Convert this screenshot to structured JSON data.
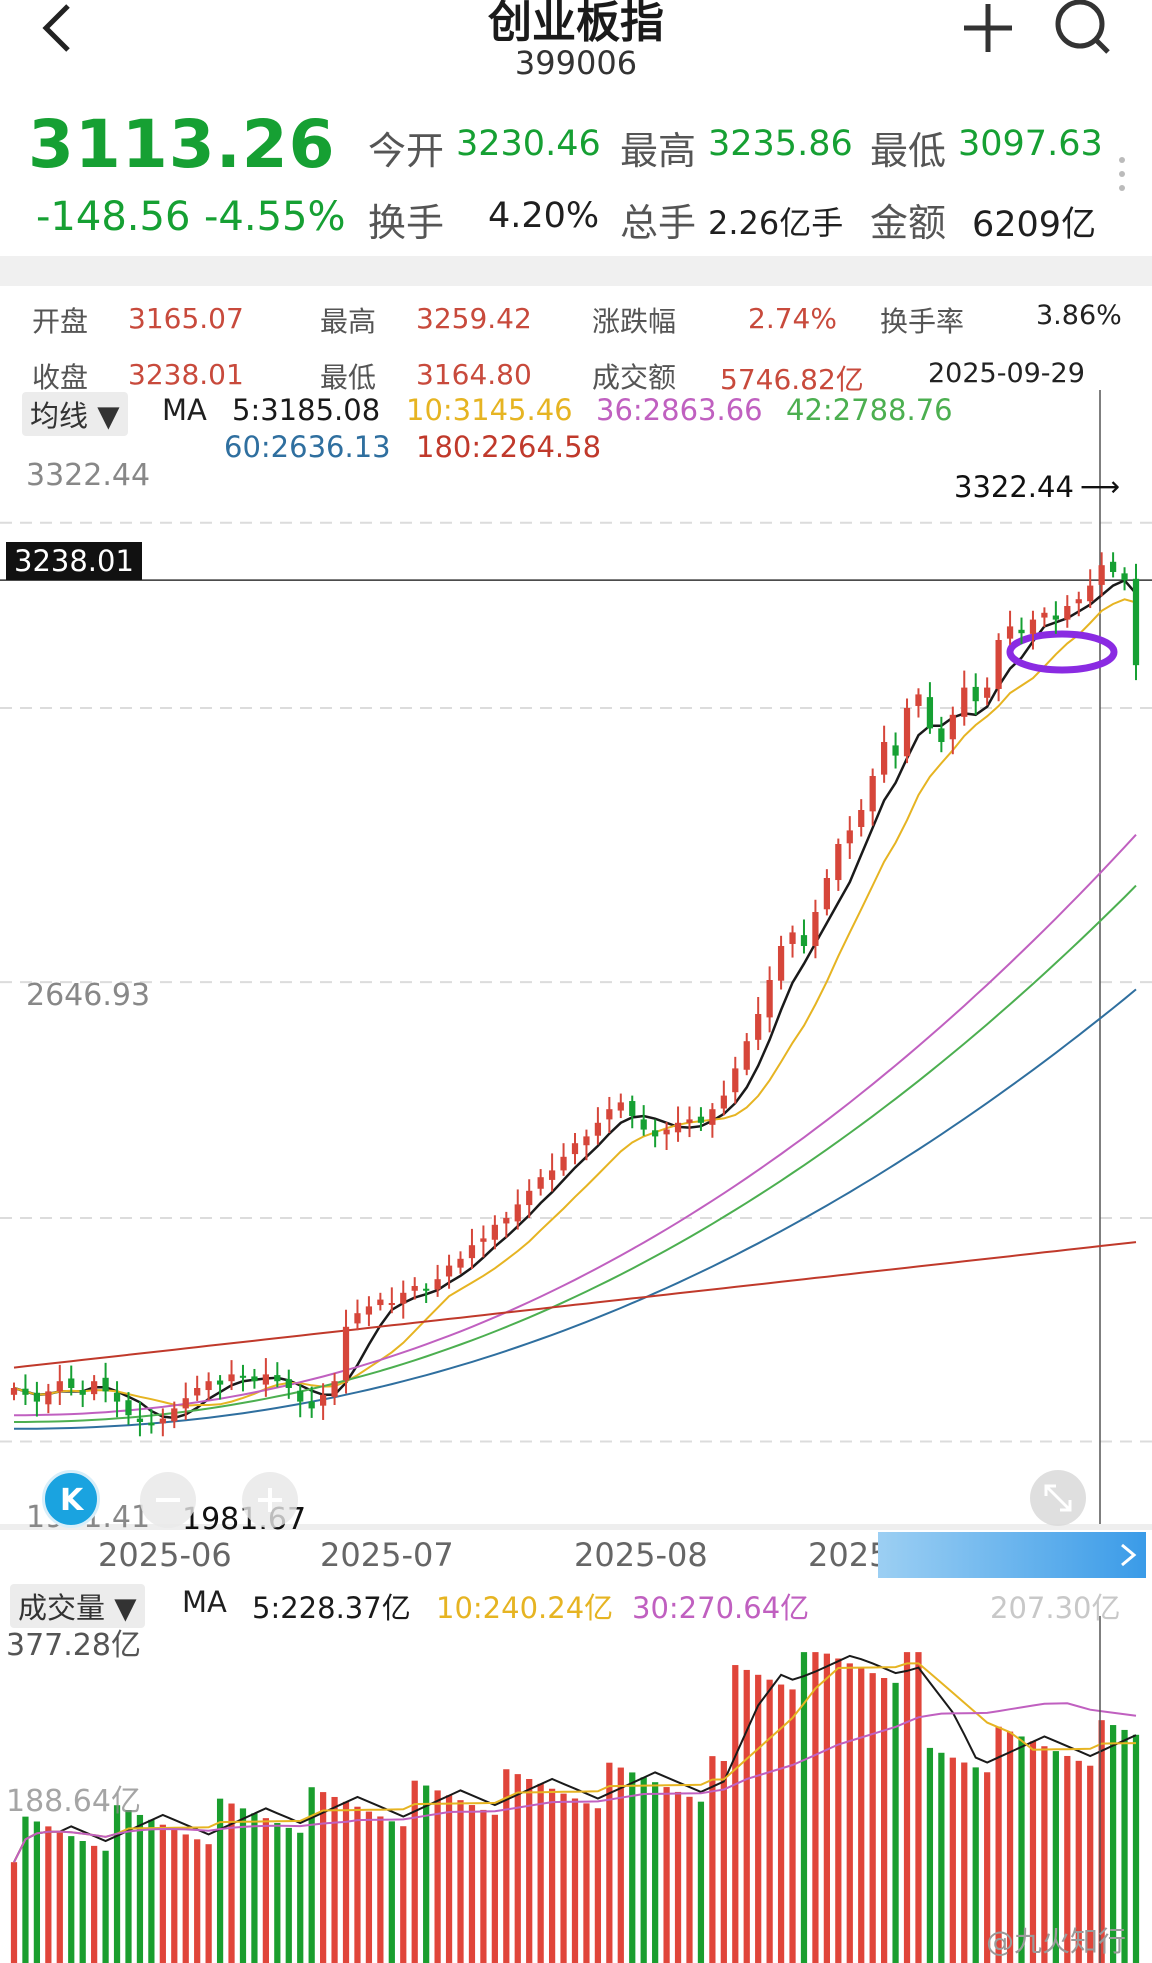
{
  "header": {
    "back_icon": "chevron-left-icon",
    "title": "创业板指",
    "code": "399006",
    "add_icon": "plus-icon",
    "search_icon": "search-icon"
  },
  "quote": {
    "price": "3113.26",
    "change": "-148.56",
    "change_pct": "-4.55%",
    "open_label": "今开",
    "open": "3230.46",
    "high_label": "最高",
    "high": "3235.86",
    "low_label": "最低",
    "low": "3097.63",
    "turnover_label": "换手",
    "turnover": "4.20%",
    "volume_label": "总手",
    "volume": "2.26亿手",
    "amount_label": "金额",
    "amount": "6209亿"
  },
  "ohlc": {
    "open_label": "开盘",
    "open": "3165.07",
    "high_label": "最高",
    "high": "3259.42",
    "change_label": "涨跌幅",
    "change": "2.74%",
    "turnover_label": "换手率",
    "turnover": "3.86%",
    "close_label": "收盘",
    "close": "3238.01",
    "low_label": "最低",
    "low": "3164.80",
    "amount_label": "成交额",
    "amount": "5746.82亿",
    "date": "2025-09-29"
  },
  "ma": {
    "selector": "均线 ▼",
    "label": "MA",
    "items": [
      {
        "text": "5:3185.08",
        "color": "#1a1a1a"
      },
      {
        "text": "10:3145.46",
        "color": "#e6b422"
      },
      {
        "text": "36:2863.66",
        "color": "#c060c0"
      },
      {
        "text": "42:2788.76",
        "color": "#4caf50"
      },
      {
        "text": "60:2636.13",
        "color": "#2f6f9f"
      },
      {
        "text": "180:2264.58",
        "color": "#c0392b"
      }
    ]
  },
  "price_chart": {
    "top_label": "3322.44",
    "mid_label": "2646.93",
    "bottom_label": "1971.41",
    "crosshair_value": "3238.01",
    "max_marker": "3322.44",
    "min_marker": "1981.67",
    "x_labels": [
      "2025-06",
      "2025-07",
      "2025-08",
      "2025-"
    ],
    "expand_icon": "expand-icon",
    "k_icon": "k-logo-icon",
    "zoom_out_icon": "minus-icon",
    "zoom_in_icon": "plus-icon",
    "next_icon": "chevron-right-icon"
  },
  "volume": {
    "selector": "成交量 ▼",
    "label": "MA",
    "items": [
      {
        "text": "5:228.37亿",
        "color": "#1a1a1a"
      },
      {
        "text": "10:240.24亿",
        "color": "#e6b422"
      },
      {
        "text": "30:270.64亿",
        "color": "#c060c0"
      }
    ],
    "right_label": "207.30亿",
    "top_label": "377.28亿",
    "mid_label": "188.64亿"
  },
  "watermark": "@九火知行",
  "chart_data": [
    {
      "type": "candlestick",
      "title": "创业板指",
      "x_labels": [
        "2025-06",
        "2025-07",
        "2025-08",
        "2025-"
      ],
      "y_axis_labels": [
        "3322.44",
        "2646.93",
        "1971.41"
      ],
      "ylim": [
        1971.41,
        3322.44
      ],
      "close": [
        2050,
        2040,
        2030,
        2045,
        2060,
        2050,
        2040,
        2060,
        2045,
        2030,
        2010,
        2000,
        1995,
        2005,
        2020,
        2035,
        2050,
        2060,
        2055,
        2070,
        2065,
        2060,
        2070,
        2060,
        2050,
        2030,
        2020,
        2040,
        2060,
        2140,
        2160,
        2170,
        2180,
        2175,
        2190,
        2200,
        2195,
        2210,
        2230,
        2240,
        2260,
        2270,
        2290,
        2300,
        2320,
        2340,
        2360,
        2370,
        2390,
        2410,
        2420,
        2440,
        2460,
        2470,
        2450,
        2430,
        2420,
        2430,
        2440,
        2445,
        2440,
        2460,
        2480,
        2520,
        2560,
        2600,
        2650,
        2700,
        2720,
        2700,
        2750,
        2800,
        2850,
        2870,
        2900,
        2950,
        3000,
        2980,
        3050,
        3070,
        3020,
        3000,
        3040,
        3080,
        3060,
        3080,
        3150,
        3170,
        3160,
        3180,
        3190,
        3180,
        3200,
        3210,
        3230,
        3260,
        3250,
        3238,
        3113
      ],
      "ma": {
        "5": 3185.08,
        "10": 3145.46,
        "36": 2863.66,
        "42": 2788.76,
        "60": 2636.13,
        "180": 2264.58
      },
      "max": 3322.44,
      "min": 1981.67
    },
    {
      "type": "bar",
      "title": "成交量",
      "y_axis_labels": [
        "377.28亿",
        "188.64亿"
      ],
      "ylim": [
        0,
        377.28
      ],
      "ma": {
        "5": 228.37,
        "10": 240.24,
        "30": 270.64
      },
      "last": 207.3
    }
  ]
}
